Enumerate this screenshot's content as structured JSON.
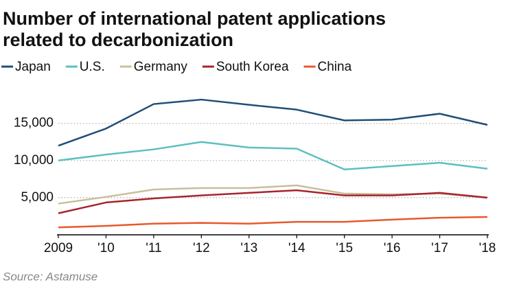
{
  "chart_data": {
    "type": "line",
    "title": [
      "Number of international patent applications",
      "related to decarbonization"
    ],
    "source": "Source: Astamuse",
    "categories": [
      "2009",
      "'10",
      "'11",
      "'12",
      "'13",
      "'14",
      "'15",
      "'16",
      "'17",
      "'18"
    ],
    "series": [
      {
        "name": "Japan",
        "color": "#1f4e79",
        "values": [
          12000,
          14300,
          17600,
          18200,
          17500,
          16850,
          15400,
          15500,
          16300,
          14800
        ]
      },
      {
        "name": "U.S.",
        "color": "#5bc0be",
        "values": [
          10000,
          10800,
          11500,
          12500,
          11750,
          11600,
          8800,
          9250,
          9700,
          8900
        ]
      },
      {
        "name": "Germany",
        "color": "#c8bf9a",
        "values": [
          4200,
          5100,
          6100,
          6300,
          6300,
          6650,
          5550,
          5450,
          5550,
          5000
        ]
      },
      {
        "name": "South Korea",
        "color": "#a8232e",
        "values": [
          2900,
          4350,
          4900,
          5300,
          5650,
          6000,
          5300,
          5300,
          5650,
          5000
        ]
      },
      {
        "name": "China",
        "color": "#e8582c",
        "values": [
          1000,
          1200,
          1500,
          1600,
          1500,
          1750,
          1750,
          2050,
          2300,
          2400
        ]
      }
    ],
    "ylim": [
      0,
      19500
    ],
    "yticks": [
      {
        "value": 5000,
        "label": "5,000"
      },
      {
        "value": 10000,
        "label": "10,000"
      },
      {
        "value": 15000,
        "label": "15,000"
      }
    ],
    "grid": true
  }
}
